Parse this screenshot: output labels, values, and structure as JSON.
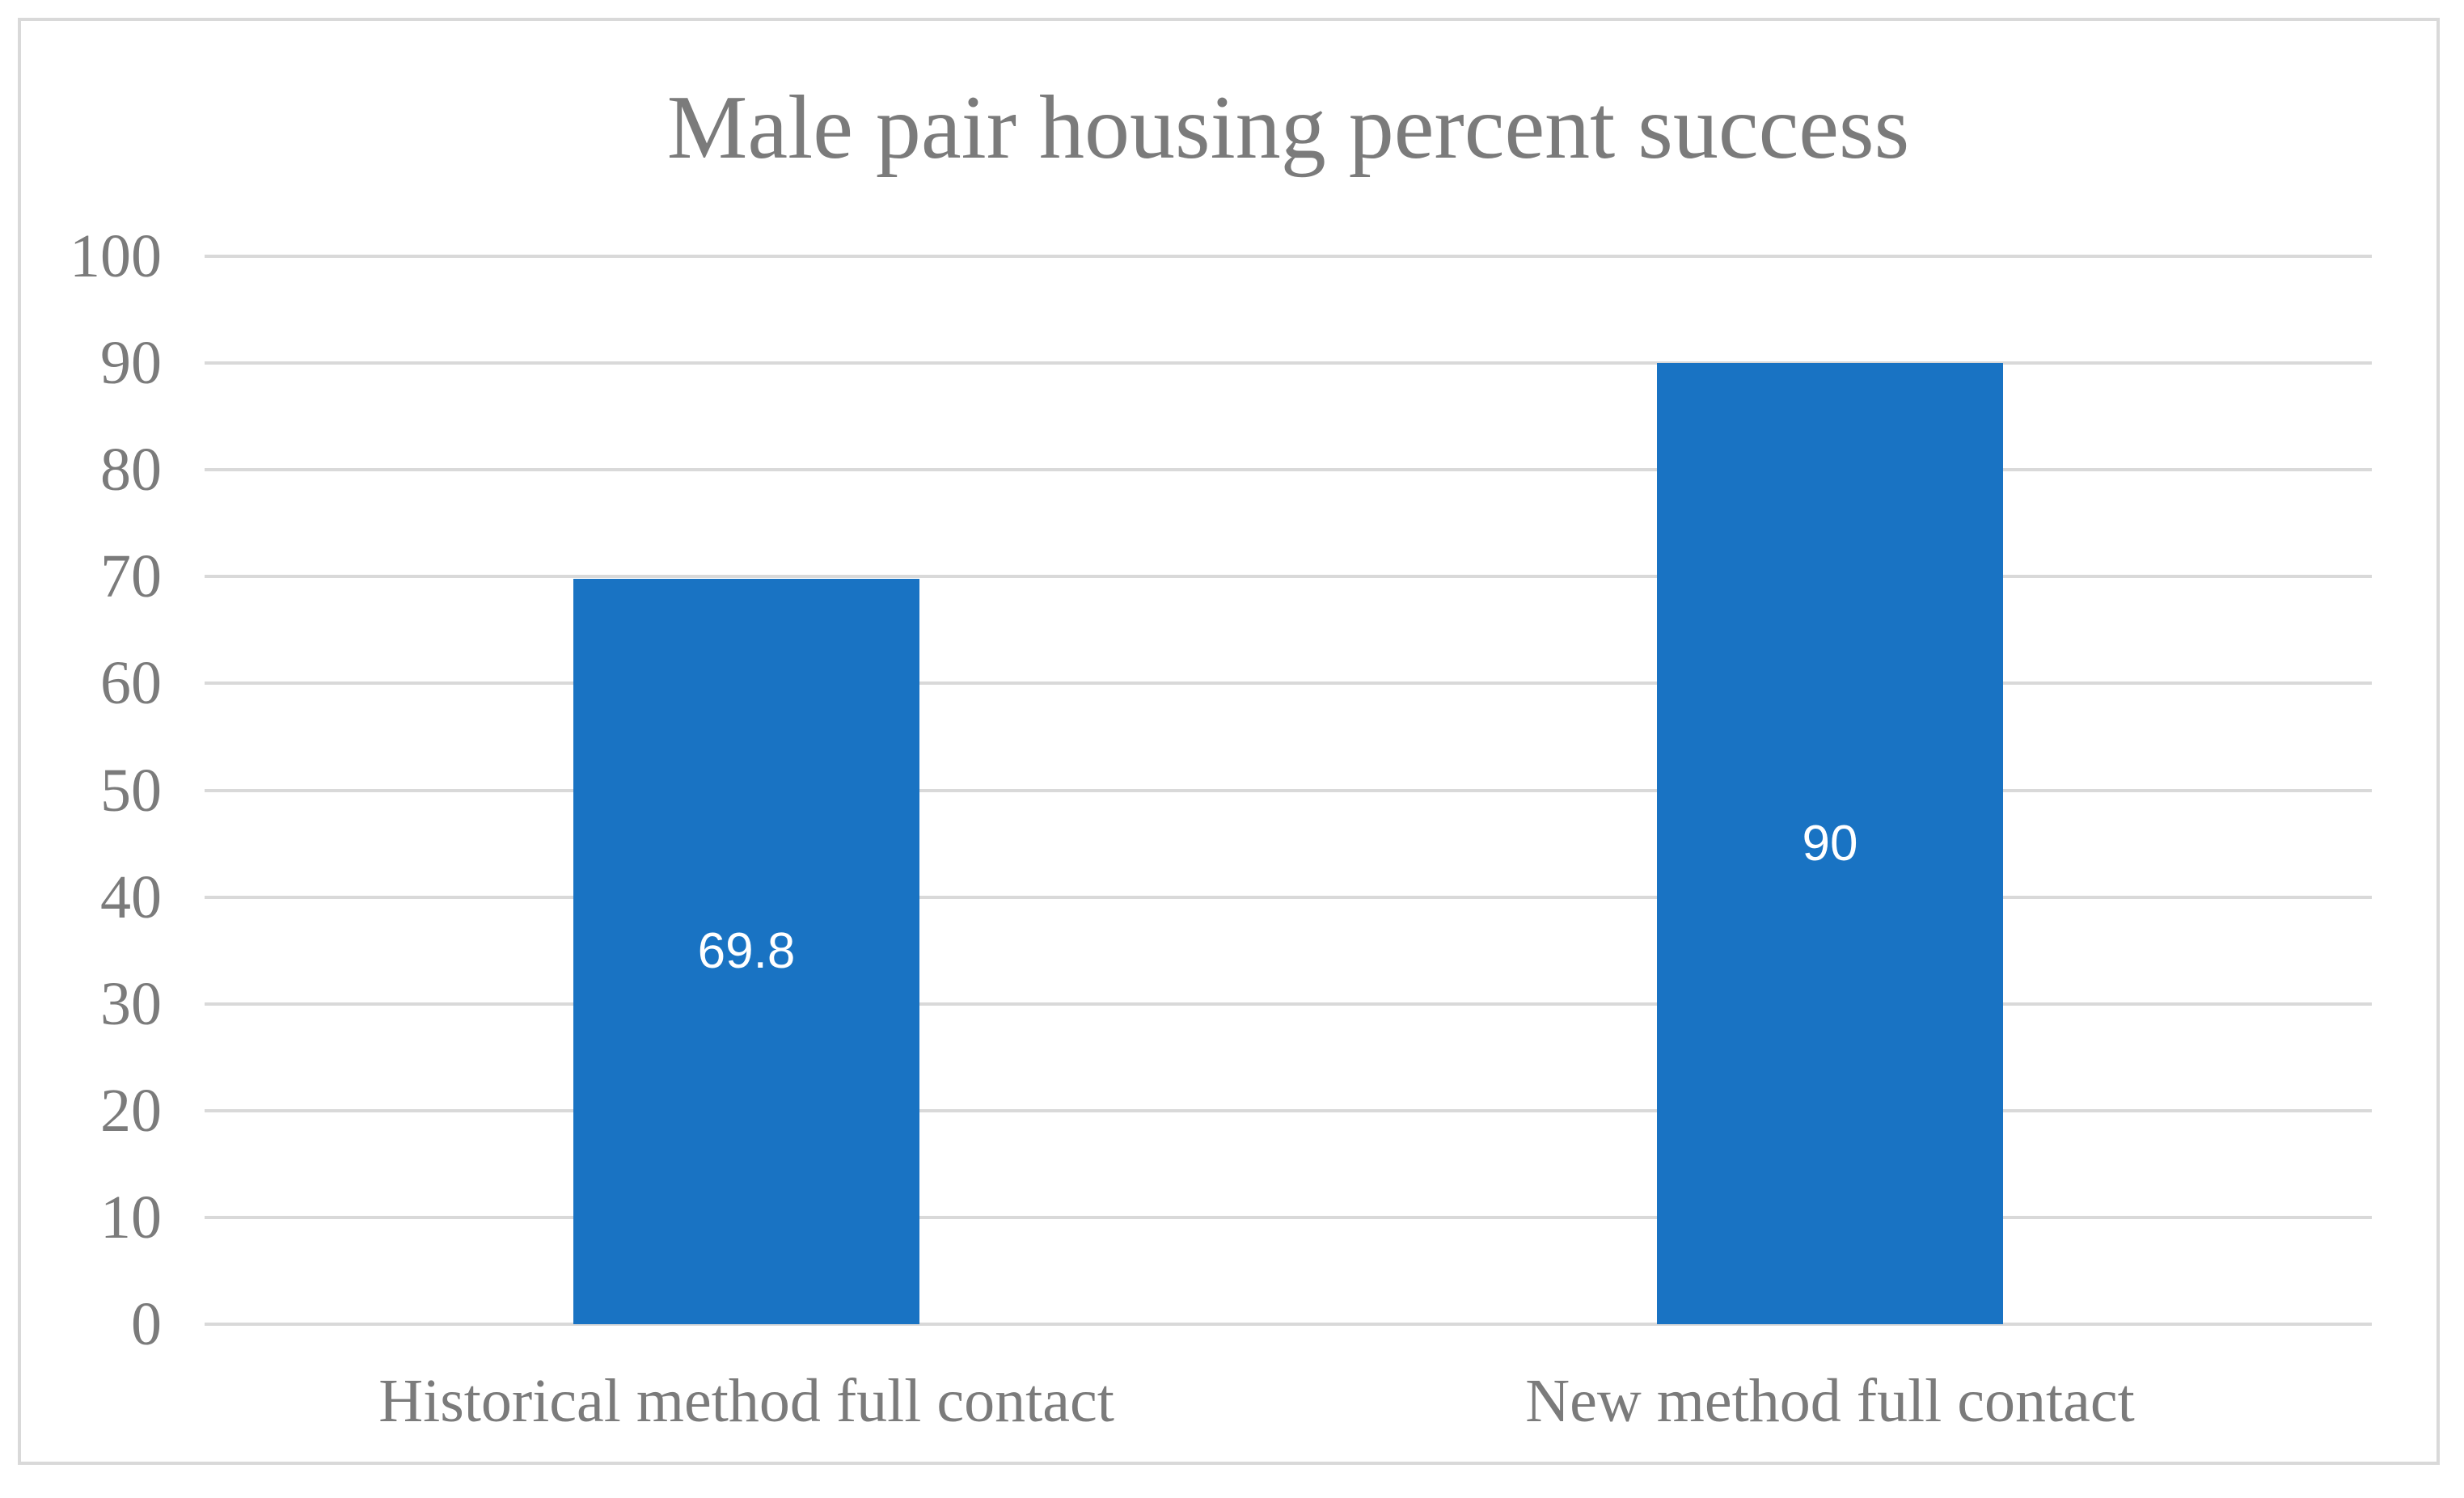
{
  "chart_data": {
    "type": "bar",
    "title": "Male pair housing percent success",
    "categories": [
      "Historical method full contact",
      "New method full contact"
    ],
    "values": [
      69.8,
      90
    ],
    "data_labels": [
      "69.8",
      "90"
    ],
    "xlabel": "",
    "ylabel": "",
    "ylim": [
      0,
      100
    ],
    "ytick_step": 10,
    "yticks": [
      0,
      10,
      20,
      30,
      40,
      50,
      60,
      70,
      80,
      90,
      100
    ],
    "grid": "horizontal",
    "legend_position": "none",
    "data_label_position": "center",
    "colors": {
      "bar": "#1973c3",
      "data_label": "#ffffff",
      "text": "#7b7b7b",
      "gridline": "#d9d9d9",
      "frame_border": "#d9d9d9",
      "background": "#ffffff"
    }
  }
}
